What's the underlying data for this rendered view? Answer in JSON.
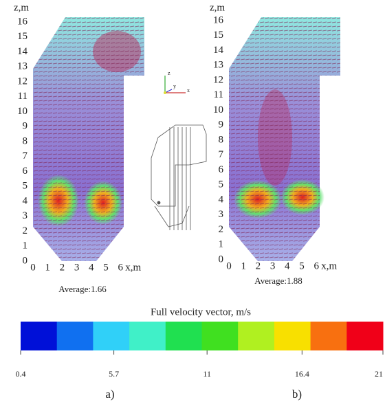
{
  "panels": [
    {
      "z_label": "z,m",
      "x_label": "x,m",
      "zlim": [
        0,
        16
      ],
      "zticks": [
        0,
        1,
        2,
        3,
        4,
        5,
        6,
        7,
        8,
        9,
        10,
        11,
        12,
        13,
        14,
        15,
        16
      ],
      "xlim": [
        0,
        6
      ],
      "xticks": [
        0,
        1,
        2,
        3,
        4,
        5,
        6
      ],
      "average": "Average:1.66",
      "label": "a)"
    },
    {
      "z_label": "z,m",
      "x_label": "x,m",
      "zlim": [
        0,
        16
      ],
      "zticks": [
        0,
        1,
        2,
        3,
        4,
        5,
        6,
        7,
        8,
        9,
        10,
        11,
        12,
        13,
        14,
        15,
        16
      ],
      "xlim": [
        0,
        6
      ],
      "xticks": [
        0,
        1,
        2,
        3,
        4,
        5,
        6
      ],
      "average": "Average:1.88",
      "label": "b)"
    }
  ],
  "triad": [
    "z",
    "y",
    "x"
  ],
  "colorbar": {
    "title": "Full velocity vector, m/s",
    "colors": [
      "#0010d8",
      "#1070f0",
      "#30d0f8",
      "#40f0c8",
      "#20e050",
      "#40e020",
      "#b0f020",
      "#f8e000",
      "#f87010",
      "#f00018"
    ],
    "range": [
      0.4,
      21
    ],
    "ticks": [
      0.4,
      5.7,
      11,
      16.4,
      21
    ]
  }
}
